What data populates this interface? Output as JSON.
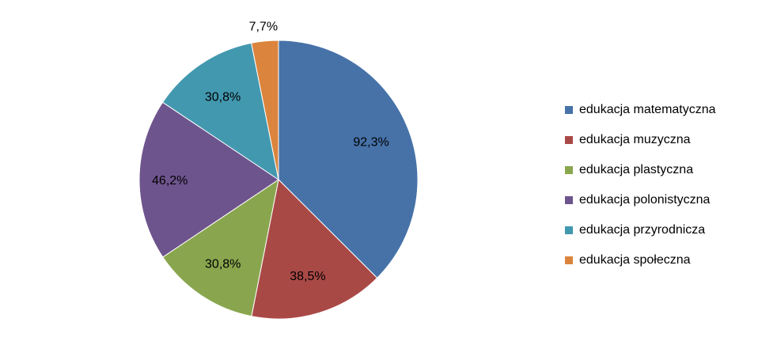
{
  "chart_data": {
    "type": "pie",
    "categories": [
      "edukacja matematyczna",
      "edukacja muzyczna",
      "edukacja plastyczna",
      "edukacja polonistyczna",
      "edukacja przyrodnicza",
      "edukacja społeczna"
    ],
    "values": [
      92.3,
      38.5,
      30.8,
      46.2,
      30.8,
      7.7
    ],
    "data_labels": [
      "92,3%",
      "38,5%",
      "30,8%",
      "46,2%",
      "30,8%",
      "7,7%"
    ],
    "colors": [
      "#4672A8",
      "#A94946",
      "#89A64E",
      "#6E548D",
      "#4298AF",
      "#DB843D"
    ],
    "start": "12 o'clock",
    "direction": "clockwise",
    "legend_position": "right",
    "title": ""
  }
}
